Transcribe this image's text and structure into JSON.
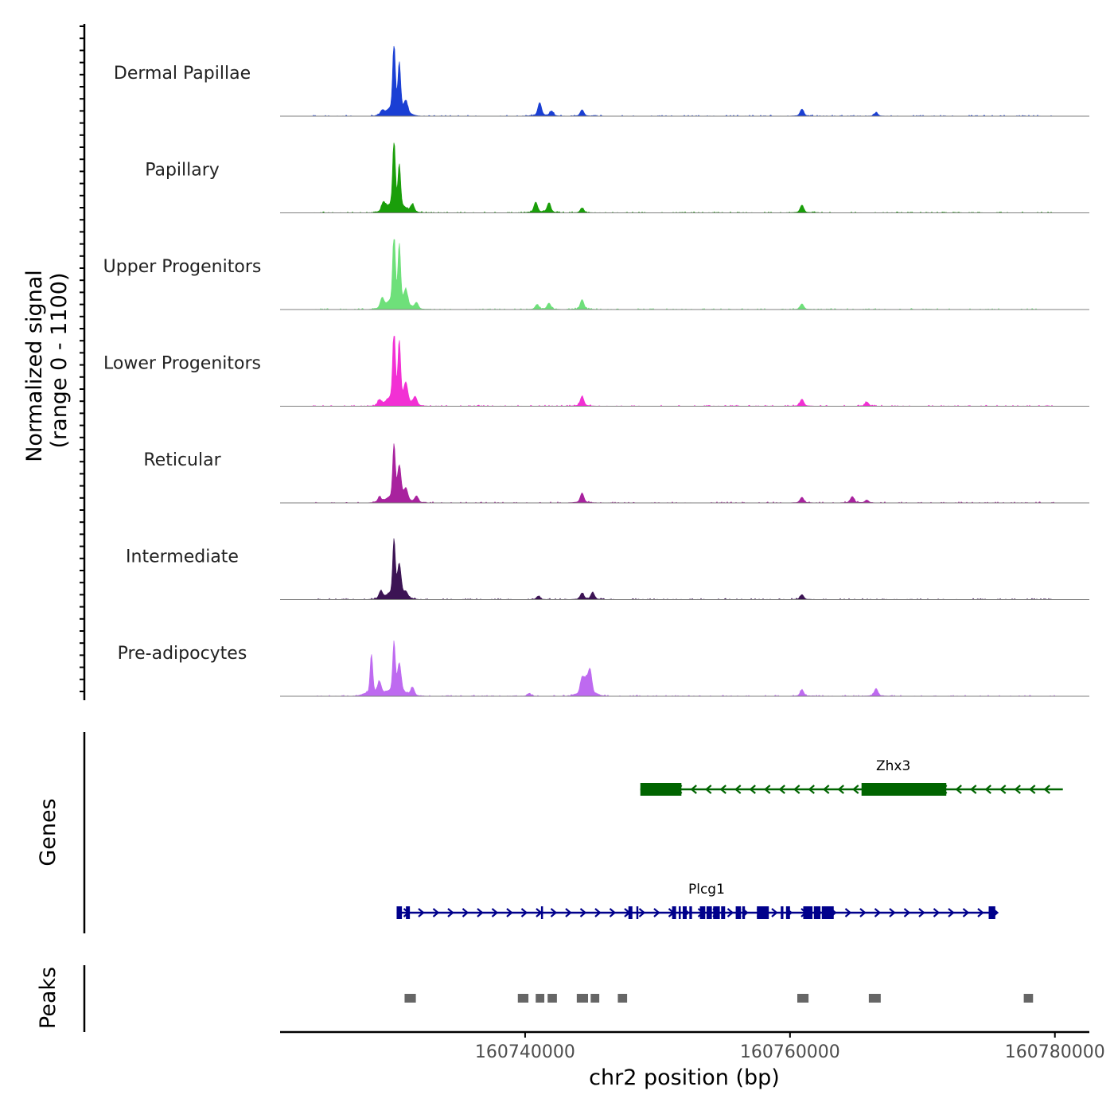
{
  "chart_data": {
    "type": "area",
    "title": "",
    "xlabel": "chr2 position (bp)",
    "ylabel": "Normalized signal",
    "ylabel_range": "(range 0 - 1100)",
    "ylim": [
      0,
      1100
    ],
    "xlim": [
      160721500,
      160782600
    ],
    "x_ticks": [
      160740000,
      160760000,
      160780000
    ],
    "x_tick_labels": [
      "160740000",
      "160760000",
      "160780000"
    ],
    "tracks": [
      {
        "name": "Dermal Papillae",
        "color": "#1a3fd4",
        "peaks": [
          [
            160730100,
            990
          ],
          [
            160730500,
            680
          ],
          [
            160731000,
            150
          ],
          [
            160729200,
            60
          ],
          [
            160741100,
            190
          ],
          [
            160742000,
            70
          ],
          [
            160744300,
            90
          ],
          [
            160760900,
            100
          ],
          [
            160766500,
            50
          ]
        ]
      },
      {
        "name": "Papillary",
        "color": "#1a9e0a",
        "peaks": [
          [
            160730100,
            1000
          ],
          [
            160730500,
            610
          ],
          [
            160729300,
            120
          ],
          [
            160731500,
            110
          ],
          [
            160740800,
            150
          ],
          [
            160741800,
            140
          ],
          [
            160744300,
            70
          ],
          [
            160760900,
            110
          ]
        ]
      },
      {
        "name": "Upper Progenitors",
        "color": "#6ee07a",
        "peaks": [
          [
            160730100,
            1020
          ],
          [
            160730500,
            830
          ],
          [
            160731000,
            200
          ],
          [
            160729200,
            140
          ],
          [
            160731800,
            90
          ],
          [
            160740900,
            70
          ],
          [
            160741800,
            90
          ],
          [
            160744300,
            140
          ],
          [
            160760900,
            80
          ]
        ]
      },
      {
        "name": "Lower Progenitors",
        "color": "#f230d4",
        "peaks": [
          [
            160730100,
            1030
          ],
          [
            160730500,
            830
          ],
          [
            160731000,
            250
          ],
          [
            160729000,
            80
          ],
          [
            160731700,
            120
          ],
          [
            160744300,
            140
          ],
          [
            160760900,
            100
          ],
          [
            160765800,
            60
          ]
        ]
      },
      {
        "name": "Reticular",
        "color": "#a8229e",
        "peaks": [
          [
            160730100,
            790
          ],
          [
            160730500,
            460
          ],
          [
            160731000,
            160
          ],
          [
            160729000,
            70
          ],
          [
            160731800,
            90
          ],
          [
            160744300,
            140
          ],
          [
            160760900,
            80
          ],
          [
            160764700,
            90
          ],
          [
            160765800,
            40
          ]
        ]
      },
      {
        "name": "Intermediate",
        "color": "#3c1454",
        "peaks": [
          [
            160730100,
            820
          ],
          [
            160730500,
            440
          ],
          [
            160729100,
            110
          ],
          [
            160731000,
            70
          ],
          [
            160741000,
            50
          ],
          [
            160744300,
            90
          ],
          [
            160745100,
            100
          ],
          [
            160760900,
            70
          ]
        ]
      },
      {
        "name": "Pre-adipocytes",
        "color": "#be6af0",
        "peaks": [
          [
            160728400,
            580
          ],
          [
            160730100,
            730
          ],
          [
            160730500,
            410
          ],
          [
            160729000,
            170
          ],
          [
            160731500,
            120
          ],
          [
            160744300,
            230
          ],
          [
            160744900,
            350
          ],
          [
            160744600,
            190
          ],
          [
            160740300,
            40
          ],
          [
            160760900,
            90
          ],
          [
            160766500,
            110
          ]
        ]
      }
    ],
    "genes_axis_label": "Genes",
    "peaks_axis_label": "Peaks",
    "genes": [
      {
        "name": "Zhx3",
        "strand": "-",
        "color": "#006400",
        "start": 160748700,
        "end": 160780600,
        "exons": [
          [
            160748700,
            160751800
          ],
          [
            160765400,
            160771800
          ]
        ]
      },
      {
        "name": "Plcg1",
        "strand": "+",
        "color": "#00008b",
        "start": 160730300,
        "end": 160775600,
        "exons": [
          [
            160730300,
            160730700
          ],
          [
            160731000,
            160731300
          ],
          [
            160741200,
            160741350
          ],
          [
            160747800,
            160748100
          ],
          [
            160748400,
            160748550
          ],
          [
            160751100,
            160751400
          ],
          [
            160751600,
            160751750
          ],
          [
            160751900,
            160752200
          ],
          [
            160752400,
            160752600
          ],
          [
            160753200,
            160753600
          ],
          [
            160753700,
            160754100
          ],
          [
            160754200,
            160754700
          ],
          [
            160754800,
            160755100
          ],
          [
            160755900,
            160756300
          ],
          [
            160756400,
            160756600
          ],
          [
            160757500,
            160758400
          ],
          [
            160759300,
            160759500
          ],
          [
            160759700,
            160760000
          ],
          [
            160761000,
            160761700
          ],
          [
            160761800,
            160762300
          ],
          [
            160762400,
            160763300
          ],
          [
            160775000,
            160775500
          ]
        ]
      }
    ],
    "peak_regions": [
      [
        160730900,
        160731750
      ],
      [
        160739450,
        160740250
      ],
      [
        160740800,
        160741450
      ],
      [
        160741700,
        160742400
      ],
      [
        160743900,
        160744750
      ],
      [
        160744950,
        160745600
      ],
      [
        160747000,
        160747700
      ],
      [
        160760550,
        160761400
      ],
      [
        160765950,
        160766850
      ],
      [
        160777650,
        160778350
      ]
    ]
  }
}
